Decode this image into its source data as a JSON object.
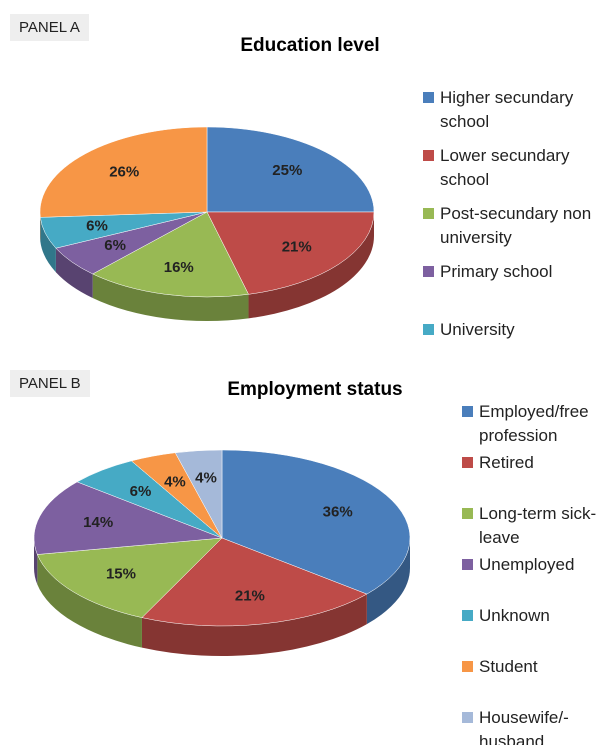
{
  "chart_data": [
    {
      "type": "pie",
      "panel": "PANEL A",
      "title": "Education level",
      "categories": [
        "Higher secundary school",
        "Lower secundary school",
        "Post-secundary non university",
        "Primary school",
        "University",
        null
      ],
      "values": [
        25,
        21,
        16,
        6,
        6,
        26
      ],
      "value_labels": [
        "25%",
        "21%",
        "16%",
        "6%",
        "6%",
        "26%"
      ],
      "colors": [
        "#4a7ebb",
        "#be4b48",
        "#98b954",
        "#7d60a0",
        "#46aac5",
        "#f79646"
      ]
    },
    {
      "type": "pie",
      "panel": "PANEL B",
      "title": "Employment status",
      "categories": [
        "Employed/free profession",
        "Retired",
        "Long-term sick-leave",
        "Unemployed",
        "Unknown",
        "Student",
        "Housewife/-husband"
      ],
      "values": [
        36,
        21,
        15,
        14,
        6,
        4,
        4
      ],
      "value_labels": [
        "36%",
        "21%",
        "15%",
        "14%",
        "6%",
        "4%",
        "4%"
      ],
      "colors": [
        "#4a7ebb",
        "#be4b48",
        "#98b954",
        "#7d60a0",
        "#46aac5",
        "#f79646",
        "#a5b9d9"
      ]
    }
  ]
}
